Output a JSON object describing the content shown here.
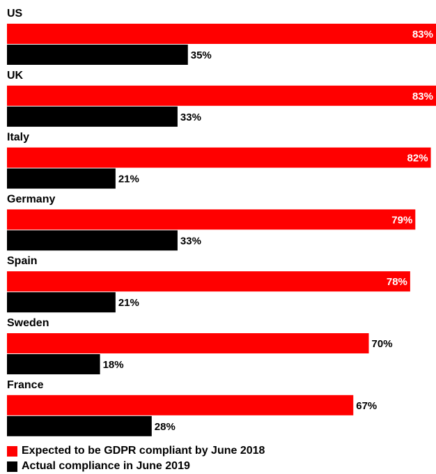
{
  "chart_data": {
    "type": "bar",
    "orientation": "horizontal",
    "categories": [
      "US",
      "UK",
      "Italy",
      "Germany",
      "Spain",
      "Sweden",
      "France"
    ],
    "series": [
      {
        "name": "Expected to be GDPR compliant by June 2018",
        "color": "#ff0000",
        "values": [
          83,
          83,
          82,
          79,
          78,
          70,
          67
        ],
        "labels": [
          "83%",
          "83%",
          "82%",
          "79%",
          "78%",
          "70%",
          "67%"
        ]
      },
      {
        "name": "Actual compliance in June 2019",
        "color": "#000000",
        "values": [
          35,
          33,
          21,
          33,
          21,
          18,
          28
        ],
        "labels": [
          "35%",
          "33%",
          "21%",
          "33%",
          "21%",
          "18%",
          "28%"
        ]
      }
    ],
    "unit": "%",
    "xlim": [
      0,
      83
    ],
    "grid": false,
    "legend_position": "bottom-left"
  }
}
